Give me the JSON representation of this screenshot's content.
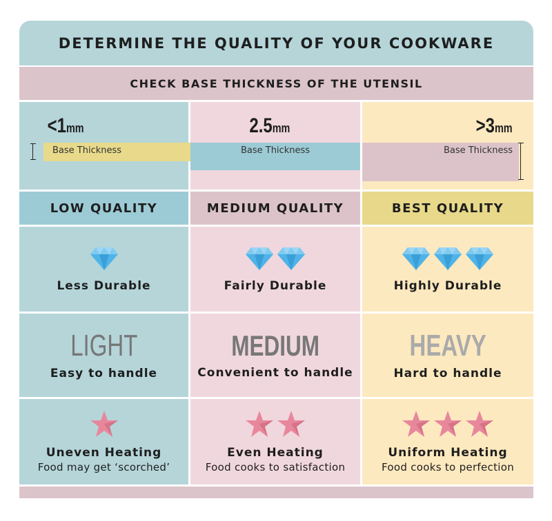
{
  "title": "DETERMINE THE QUALITY OF YOUR COOKWARE",
  "subtitle": "CHECK BASE THICKNESS OF THE UTENSIL",
  "columns": [
    {
      "thickness": "<1",
      "unit": "mm",
      "base_label": "Base Thickness",
      "quality": "LOW QUALITY",
      "diamonds": 1,
      "durability": "Less Durable",
      "weight": "LIGHT",
      "handling": "Easy to handle",
      "stars": 1,
      "heating": "Uneven Heating",
      "heating_note": "Food may get ‘scorched’"
    },
    {
      "thickness": "2.5",
      "unit": "mm",
      "base_label": "Base Thickness",
      "quality": "MEDIUM QUALITY",
      "diamonds": 2,
      "durability": "Fairly Durable",
      "weight": "MEDIUM",
      "handling": "Convenient to handle",
      "stars": 2,
      "heating": "Even Heating",
      "heating_note": "Food cooks to satisfaction"
    },
    {
      "thickness": ">3",
      "unit": "mm",
      "base_label": "Base Thickness",
      "quality": "BEST QUALITY",
      "diamonds": 3,
      "durability": "Highly Durable",
      "weight": "HEAVY",
      "handling": "Hard to handle",
      "stars": 3,
      "heating": "Uniform Heating",
      "heating_note": "Food cooks to perfection"
    }
  ],
  "colors": {
    "teal": "#b5d5d9",
    "pink": "#f0d7de",
    "yellow": "#fde9bf",
    "diamond": "#4fb3e8",
    "star": "#e8879c"
  }
}
